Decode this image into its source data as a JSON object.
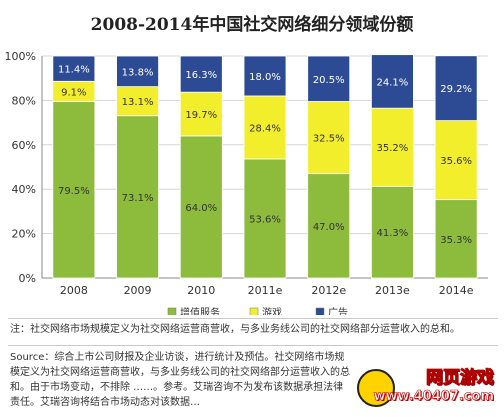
{
  "title": "2008-2014年中国社交网络细分领域份额",
  "chart_data": {
    "type": "bar",
    "stacked": true,
    "percent": true,
    "categories": [
      "2008",
      "2009",
      "2010",
      "2011e",
      "2012e",
      "2013e",
      "2014e"
    ],
    "series": [
      {
        "name": "增值服务",
        "color": "#8dbb3c",
        "values": [
          79.5,
          73.1,
          64.0,
          53.6,
          47.0,
          41.3,
          35.3
        ],
        "labels": [
          "79.5%",
          "73.1%",
          "64.0%",
          "53.6%",
          "47.0%",
          "41.3%",
          "35.3%"
        ]
      },
      {
        "name": "游戏",
        "color": "#f2ee2c",
        "values": [
          9.1,
          13.1,
          19.7,
          28.4,
          32.5,
          35.2,
          35.6
        ],
        "labels": [
          "9.1%",
          "13.1%",
          "19.7%",
          "28.4%",
          "32.5%",
          "35.2%",
          "35.6%"
        ]
      },
      {
        "name": "广告",
        "color": "#2d4b94",
        "values": [
          11.4,
          13.8,
          16.3,
          18.0,
          20.5,
          24.1,
          29.2
        ],
        "labels": [
          "11.4%",
          "13.8%",
          "16.3%",
          "18.0%",
          "20.5%",
          "24.1%",
          "29.2%"
        ]
      }
    ],
    "yticks": [
      "0%",
      "20%",
      "40%",
      "60%",
      "80%",
      "100%"
    ],
    "ylim": [
      0,
      100
    ],
    "grid": true,
    "legend_position": "bottom"
  },
  "notes": {
    "note1": "注：社交网络市场规模定义为社交网络运营商营收，与多业务线公司的社交网络部分运营收入的总和。",
    "source": "Source：综合上市公司财报及企业访谈，进行统计及预估。社交网络市场规模定义为社交网络运营商营收，与多业务线公司的社交网络部分运营收入的总和。由于市场变动，不排除 ……。参考。艾瑞咨询不为发布该数据承担法律责任。艾瑞咨询将结合市场动态对该数据…"
  },
  "watermark": {
    "brand": "网页游戏",
    "url": "www.40407.com"
  }
}
